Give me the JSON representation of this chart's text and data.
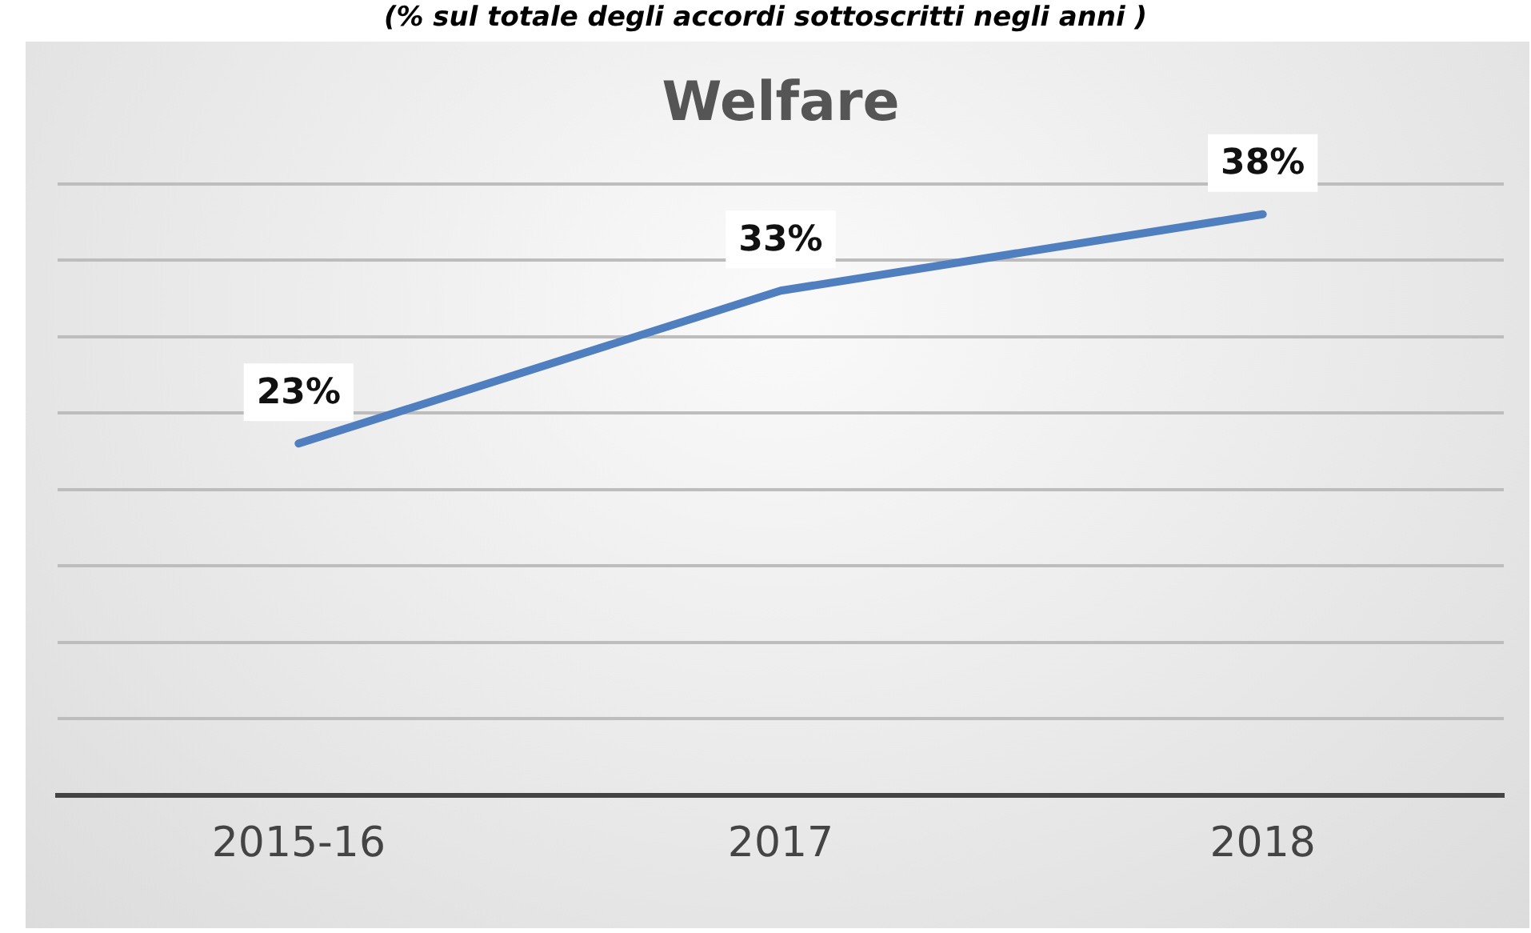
{
  "chart_data": {
    "type": "line",
    "title": "Welfare",
    "subtitle": "(% sul totale degli accordi sottoscritti negli anni )",
    "categories": [
      "2015-16",
      "2017",
      "2018"
    ],
    "series": [
      {
        "color": "#4f7fbf",
        "values": [
          23,
          33,
          38
        ],
        "value_labels": [
          "23%",
          "33%",
          "38%"
        ]
      }
    ],
    "tick_labels": "x",
    "grid": "y",
    "line_style": "solid"
  }
}
